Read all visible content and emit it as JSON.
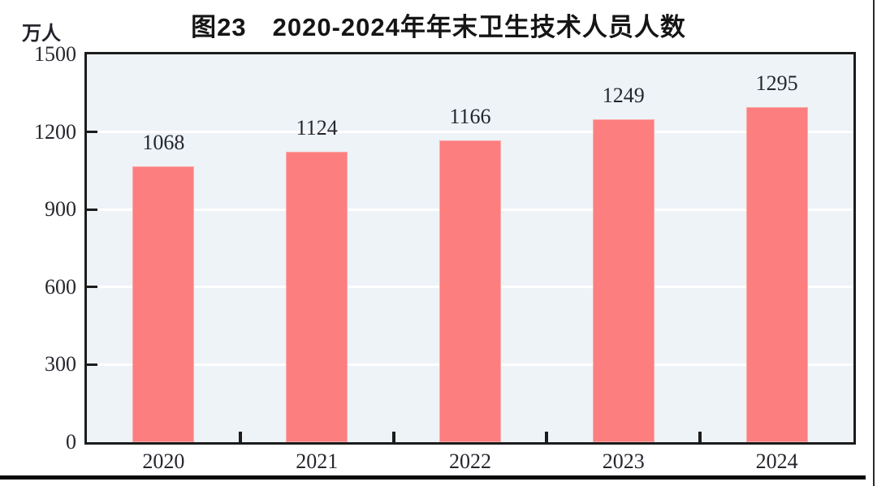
{
  "chart_data": {
    "type": "bar",
    "title": "图23　2020-2024年年末卫生技术人员人数",
    "unit_label": "万人",
    "categories": [
      "2020",
      "2021",
      "2022",
      "2023",
      "2024"
    ],
    "values": [
      1068,
      1124,
      1166,
      1249,
      1295
    ],
    "data_labels": [
      "1068",
      "1124",
      "1166",
      "1249",
      "1295"
    ],
    "ylim": [
      0,
      1500
    ],
    "yticks": [
      0,
      300,
      600,
      900,
      1200,
      1500
    ],
    "xlabel": "",
    "ylabel": "万人",
    "legend": "none",
    "grid": "horizontal-white-lines",
    "colors": {
      "bar_fill": "#fc7e7e",
      "plot_background": "#edf3f7",
      "axis_frame": "#1c1c1c",
      "gridline": "#ffffff",
      "text": "#26262e"
    }
  }
}
